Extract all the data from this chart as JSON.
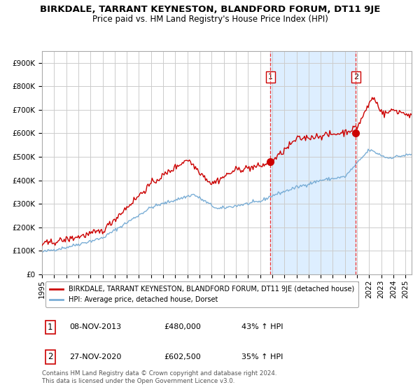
{
  "title": "BIRKDALE, TARRANT KEYNESTON, BLANDFORD FORUM, DT11 9JE",
  "subtitle": "Price paid vs. HM Land Registry's House Price Index (HPI)",
  "ylabel_ticks": [
    "£0",
    "£100K",
    "£200K",
    "£300K",
    "£400K",
    "£500K",
    "£600K",
    "£700K",
    "£800K",
    "£900K"
  ],
  "ytick_values": [
    0,
    100000,
    200000,
    300000,
    400000,
    500000,
    600000,
    700000,
    800000,
    900000
  ],
  "ylim": [
    0,
    950000
  ],
  "xlim_start": 1995.0,
  "xlim_end": 2025.5,
  "red_line_color": "#cc0000",
  "blue_line_color": "#7aaed6",
  "background_color": "#ffffff",
  "shaded_region_color": "#ddeeff",
  "grid_color": "#cccccc",
  "dashed_line_color": "#ee3333",
  "point1_x": 2013.85,
  "point1_y": 480000,
  "point2_x": 2020.9,
  "point2_y": 602500,
  "legend_red_label": "BIRKDALE, TARRANT KEYNESTON, BLANDFORD FORUM, DT11 9JE (detached house)",
  "legend_blue_label": "HPI: Average price, detached house, Dorset",
  "table_row1": [
    "1",
    "08-NOV-2013",
    "£480,000",
    "43% ↑ HPI"
  ],
  "table_row2": [
    "2",
    "27-NOV-2020",
    "£602,500",
    "35% ↑ HPI"
  ],
  "footer": "Contains HM Land Registry data © Crown copyright and database right 2024.\nThis data is licensed under the Open Government Licence v3.0.",
  "title_fontsize": 9.5,
  "subtitle_fontsize": 8.5,
  "tick_fontsize": 7.5,
  "legend_fontsize": 7.5
}
